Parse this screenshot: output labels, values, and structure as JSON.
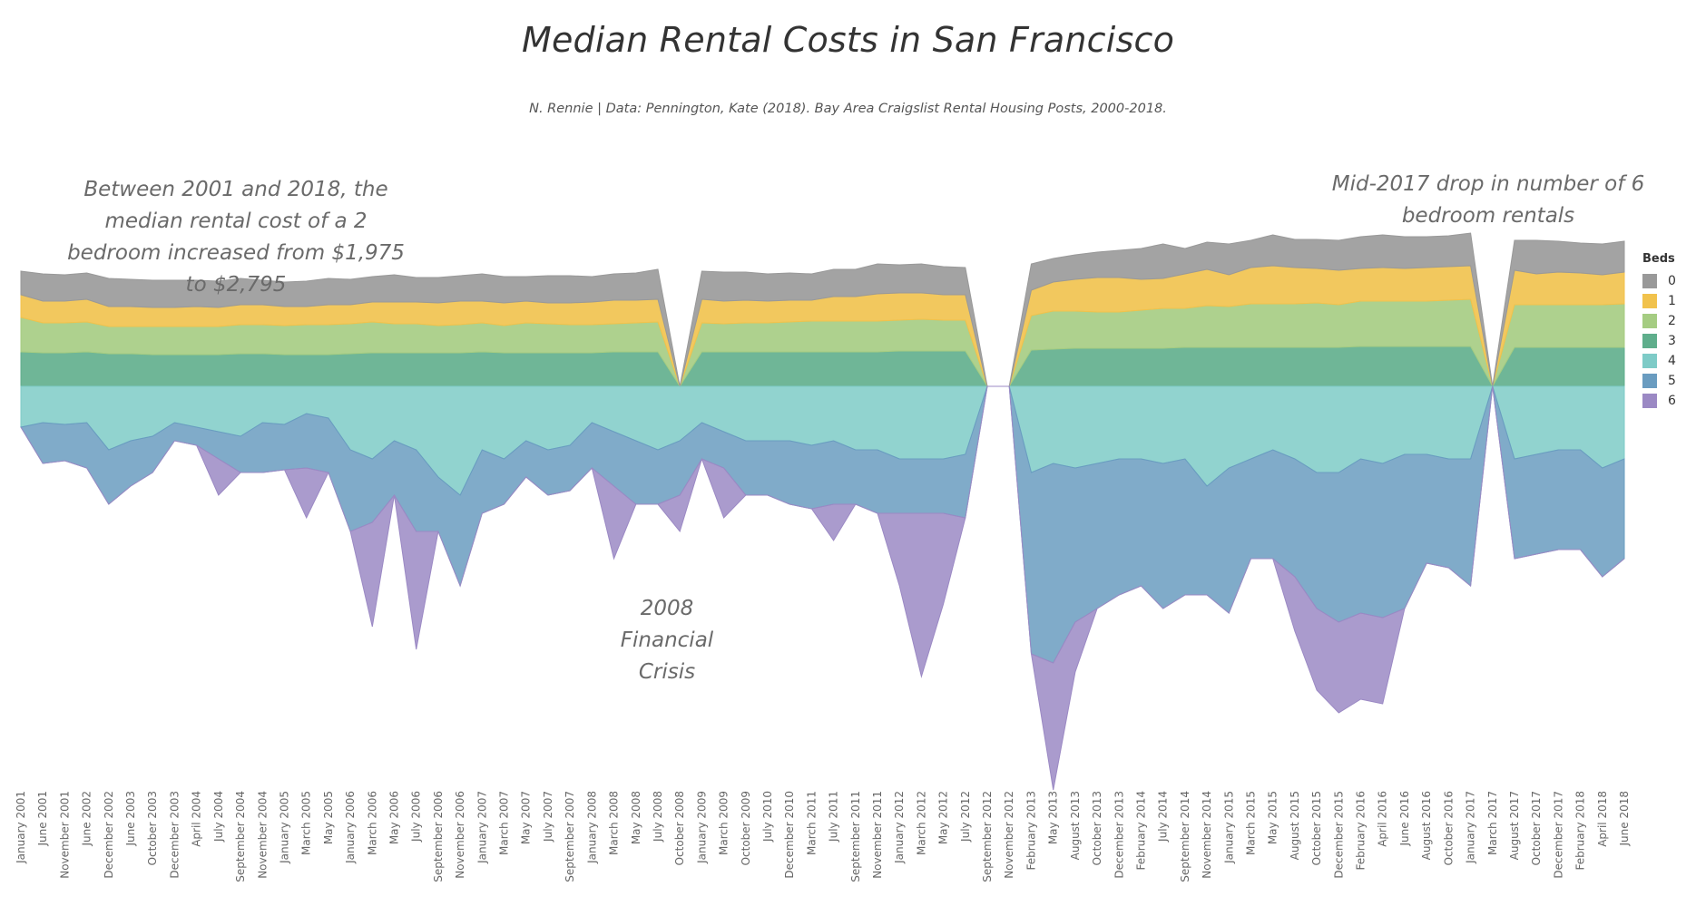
{
  "title": "Median Rental Costs in San Francisco",
  "subtitle": "N. Rennie | Data: Pennington, Kate (2018). Bay Area Craigslist Rental Housing Posts, 2000-2018.",
  "annotations": {
    "left": "Between 2001 and 2018, the median rental cost of a 2 bedroom increased from $1,975 to $2,795",
    "right": "Mid-2017 drop in number of 6 bedroom rentals",
    "crisis": "2008 Financial Crisis"
  },
  "legend": {
    "title": "Beds",
    "items": [
      {
        "label": "0",
        "color": "#999999"
      },
      {
        "label": "1",
        "color": "#f1c24c"
      },
      {
        "label": "2",
        "color": "#a5cc82"
      },
      {
        "label": "3",
        "color": "#5fae8c"
      },
      {
        "label": "4",
        "color": "#7ecbc7"
      },
      {
        "label": "5",
        "color": "#6a9cc0"
      },
      {
        "label": "6",
        "color": "#9b89c4"
      }
    ]
  },
  "chart_data": {
    "type": "area",
    "title": "Median Rental Costs in San Francisco",
    "subtitle": "N. Rennie | Data: Pennington, Kate (2018). Bay Area Craigslist Rental Housing Posts, 2000-2018.",
    "xlabel": "",
    "ylabel": "",
    "stacking": "diverging: 0-3 bedrooms stacked upward, 4-6 bedrooms stacked downward",
    "x_tick_labels": [
      "January 2001",
      "June 2001",
      "November 2001",
      "June 2002",
      "December 2002",
      "June 2003",
      "October 2003",
      "December 2003",
      "April 2004",
      "July 2004",
      "September 2004",
      "November 2004",
      "January 2005",
      "March 2005",
      "May 2005",
      "January 2006",
      "March 2006",
      "May 2006",
      "July 2006",
      "September 2006",
      "November 2006",
      "January 2007",
      "March 2007",
      "May 2007",
      "July 2007",
      "September 2007",
      "January 2008",
      "March 2008",
      "May 2008",
      "July 2008",
      "October 2008",
      "January 2009",
      "March 2009",
      "October 2009",
      "July 2010",
      "December 2010",
      "March 2011",
      "July 2011",
      "September 2011",
      "November 2011",
      "January 2012",
      "March 2012",
      "May 2012",
      "July 2012",
      "September 2012",
      "November 2012",
      "February 2013",
      "May 2013",
      "August 2013",
      "October 2013",
      "December 2013",
      "February 2014",
      "July 2014",
      "September 2014",
      "November 2014",
      "January 2015",
      "March 2015",
      "May 2015",
      "August 2015",
      "October 2015",
      "December 2015",
      "February 2016",
      "April 2016",
      "June 2016",
      "August 2016",
      "October 2016",
      "January 2017",
      "March 2017",
      "August 2017",
      "October 2017",
      "December 2017",
      "February 2018",
      "April 2018",
      "June 2018"
    ],
    "series": [
      {
        "name": "0",
        "values": [
          26,
          30,
          29,
          29,
          31,
          30,
          30,
          30,
          29,
          29,
          29,
          27,
          27,
          28,
          29,
          28,
          28,
          30,
          27,
          28,
          28,
          30,
          29,
          27,
          30,
          30,
          28,
          29,
          30,
          33,
          0,
          31,
          32,
          31,
          30,
          30,
          29,
          30,
          30,
          33,
          31,
          32,
          31,
          30,
          0,
          0,
          29,
          26,
          27,
          28,
          30,
          34,
          38,
          28,
          30,
          34,
          30,
          34,
          31,
          32,
          33,
          35,
          36,
          35,
          34,
          34,
          36,
          0,
          33,
          37,
          34,
          33,
          34,
          34
        ]
      },
      {
        "name": "1",
        "values": [
          25,
          24,
          24,
          25,
          22,
          22,
          21,
          21,
          22,
          21,
          22,
          22,
          21,
          20,
          22,
          21,
          22,
          24,
          24,
          25,
          26,
          24,
          25,
          24,
          23,
          24,
          25,
          26,
          25,
          25,
          0,
          26,
          25,
          25,
          24,
          24,
          23,
          27,
          27,
          30,
          30,
          29,
          28,
          28,
          0,
          0,
          28,
          32,
          35,
          38,
          38,
          34,
          33,
          38,
          40,
          35,
          40,
          42,
          40,
          38,
          38,
          36,
          37,
          36,
          37,
          37,
          37,
          0,
          38,
          34,
          36,
          35,
          33,
          35
        ]
      },
      {
        "name": "2",
        "values": [
          38,
          33,
          33,
          33,
          30,
          30,
          31,
          31,
          31,
          31,
          32,
          32,
          32,
          33,
          33,
          33,
          34,
          32,
          32,
          30,
          31,
          32,
          30,
          33,
          32,
          31,
          31,
          31,
          32,
          33,
          0,
          32,
          31,
          32,
          32,
          33,
          34,
          34,
          34,
          34,
          34,
          35,
          34,
          34,
          0,
          0,
          38,
          42,
          41,
          40,
          40,
          42,
          44,
          43,
          46,
          45,
          48,
          48,
          48,
          49,
          47,
          50,
          50,
          50,
          50,
          51,
          52,
          0,
          47,
          47,
          47,
          47,
          47,
          48
        ]
      },
      {
        "name": "3",
        "values": [
          38,
          37,
          37,
          38,
          36,
          36,
          35,
          35,
          35,
          35,
          36,
          36,
          35,
          35,
          35,
          36,
          37,
          37,
          37,
          37,
          37,
          38,
          37,
          37,
          37,
          37,
          37,
          38,
          38,
          38,
          0,
          38,
          38,
          38,
          38,
          38,
          38,
          38,
          38,
          38,
          39,
          39,
          39,
          39,
          0,
          0,
          40,
          41,
          42,
          42,
          42,
          42,
          42,
          43,
          43,
          43,
          43,
          43,
          43,
          43,
          43,
          44,
          44,
          44,
          44,
          44,
          44,
          0,
          43,
          43,
          43,
          43,
          43,
          43
        ]
      },
      {
        "name": "4",
        "values": [
          45,
          40,
          42,
          40,
          70,
          60,
          55,
          40,
          45,
          50,
          55,
          40,
          42,
          30,
          35,
          70,
          80,
          60,
          70,
          100,
          120,
          70,
          80,
          60,
          70,
          65,
          40,
          50,
          60,
          70,
          60,
          40,
          50,
          60,
          60,
          60,
          65,
          60,
          70,
          70,
          80,
          80,
          80,
          75,
          0,
          0,
          95,
          85,
          90,
          85,
          80,
          80,
          85,
          80,
          110,
          90,
          80,
          70,
          80,
          95,
          95,
          80,
          85,
          75,
          75,
          80,
          80,
          0,
          80,
          75,
          70,
          70,
          90,
          80
        ]
      },
      {
        "name": "5",
        "values": [
          0,
          45,
          40,
          50,
          60,
          50,
          40,
          20,
          20,
          30,
          40,
          55,
          50,
          60,
          60,
          90,
          70,
          60,
          90,
          60,
          100,
          70,
          50,
          40,
          50,
          50,
          50,
          60,
          70,
          60,
          60,
          40,
          40,
          60,
          60,
          70,
          70,
          70,
          60,
          70,
          60,
          60,
          60,
          70,
          0,
          0,
          200,
          220,
          170,
          160,
          150,
          140,
          160,
          150,
          120,
          160,
          110,
          120,
          130,
          150,
          165,
          170,
          170,
          170,
          120,
          120,
          140,
          0,
          110,
          110,
          110,
          110,
          120,
          110
        ]
      },
      {
        "name": "6",
        "values": [
          0,
          0,
          0,
          0,
          0,
          0,
          0,
          0,
          0,
          40,
          0,
          0,
          0,
          55,
          0,
          0,
          115,
          0,
          130,
          0,
          0,
          0,
          0,
          0,
          0,
          0,
          0,
          80,
          0,
          0,
          40,
          0,
          55,
          0,
          0,
          0,
          0,
          40,
          0,
          0,
          80,
          180,
          100,
          0,
          0,
          0,
          0,
          140,
          55,
          0,
          0,
          0,
          0,
          0,
          0,
          0,
          0,
          0,
          60,
          90,
          100,
          95,
          95,
          0,
          0,
          0,
          0,
          0,
          0,
          0,
          0,
          0,
          0,
          0
        ]
      }
    ],
    "legend_title": "Beds",
    "legend_position": "right",
    "grid": false
  }
}
